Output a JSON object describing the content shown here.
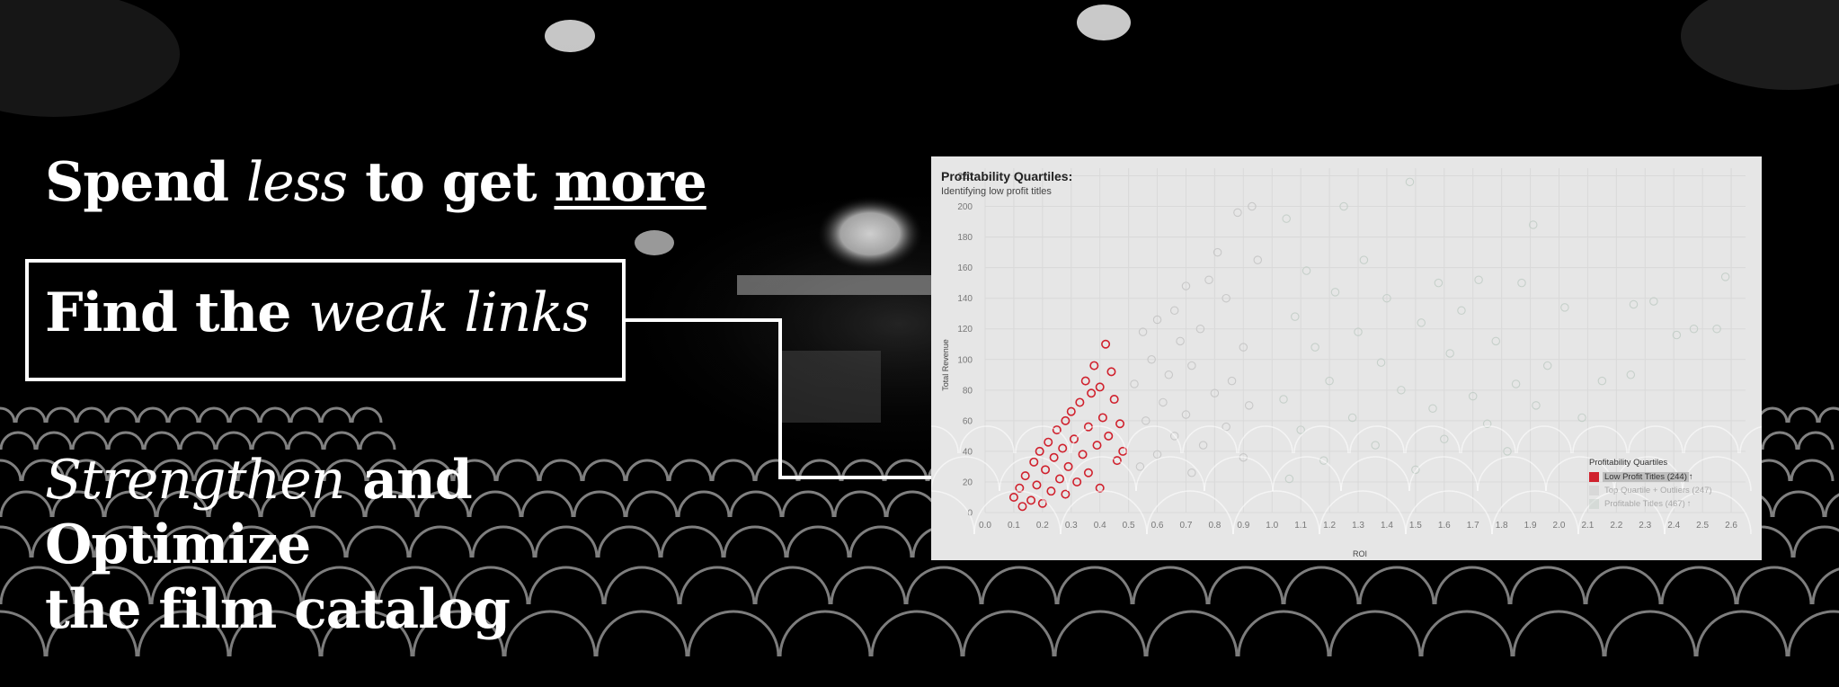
{
  "headline_1": {
    "pre": "Spend",
    "emph": "less",
    "mid": "to get",
    "strong": "more"
  },
  "headline_2": {
    "pre": "Find the",
    "emph": "weak links"
  },
  "headline_3": {
    "emph": "Strengthen",
    "mid": "and Optimize",
    "line2": "the film catalog"
  },
  "colors": {
    "low_profit": "#d0212d",
    "other": "#c4c4c4",
    "profitable": "#c2cdc6"
  },
  "chart_data": {
    "type": "scatter",
    "title": "Profitability Quartiles:",
    "subtitle": "Identifying low profit titles",
    "xlabel": "ROI",
    "ylabel": "Total Revenue",
    "xlim": [
      0.0,
      2.65
    ],
    "ylim": [
      0,
      225
    ],
    "x_ticks": [
      "0.0",
      "0.1",
      "0.2",
      "0.3",
      "0.4",
      "0.5",
      "0.6",
      "0.7",
      "0.8",
      "0.9",
      "1.0",
      "1.1",
      "1.2",
      "1.3",
      "1.4",
      "1.5",
      "1.6",
      "1.7",
      "1.8",
      "1.9",
      "2.0",
      "2.1",
      "2.2",
      "2.3",
      "2.4",
      "2.5",
      "2.6"
    ],
    "y_ticks": [
      "0",
      "20",
      "40",
      "60",
      "80",
      "100",
      "120",
      "140",
      "160",
      "180",
      "200",
      "220"
    ],
    "grid": true,
    "legend_position": "bottom-right",
    "legend_title": "Profitability Quartiles",
    "series": [
      {
        "name": "Low Profit Titles (244)",
        "color": "#d0212d",
        "marker": "open-circle",
        "count": 244,
        "points": [
          [
            0.42,
            110
          ],
          [
            0.38,
            96
          ],
          [
            0.44,
            92
          ],
          [
            0.35,
            86
          ],
          [
            0.4,
            82
          ],
          [
            0.37,
            78
          ],
          [
            0.45,
            74
          ],
          [
            0.33,
            72
          ],
          [
            0.3,
            66
          ],
          [
            0.41,
            62
          ],
          [
            0.47,
            58
          ],
          [
            0.28,
            60
          ],
          [
            0.36,
            56
          ],
          [
            0.25,
            54
          ],
          [
            0.43,
            50
          ],
          [
            0.31,
            48
          ],
          [
            0.22,
            46
          ],
          [
            0.39,
            44
          ],
          [
            0.27,
            42
          ],
          [
            0.19,
            40
          ],
          [
            0.34,
            38
          ],
          [
            0.24,
            36
          ],
          [
            0.46,
            34
          ],
          [
            0.17,
            33
          ],
          [
            0.29,
            30
          ],
          [
            0.21,
            28
          ],
          [
            0.36,
            26
          ],
          [
            0.14,
            24
          ],
          [
            0.26,
            22
          ],
          [
            0.32,
            20
          ],
          [
            0.18,
            18
          ],
          [
            0.12,
            16
          ],
          [
            0.23,
            14
          ],
          [
            0.4,
            16
          ],
          [
            0.1,
            10
          ],
          [
            0.16,
            8
          ],
          [
            0.2,
            6
          ],
          [
            0.13,
            4
          ],
          [
            0.28,
            12
          ],
          [
            0.48,
            40
          ]
        ]
      },
      {
        "name": "Top Quartile + Outliers (247)",
        "color": "#c4c4c4",
        "marker": "open-circle",
        "count": 247,
        "points": [
          [
            0.88,
            196
          ],
          [
            0.93,
            200
          ],
          [
            0.81,
            170
          ],
          [
            0.78,
            152
          ],
          [
            0.95,
            165
          ],
          [
            0.7,
            148
          ],
          [
            0.66,
            132
          ],
          [
            0.84,
            140
          ],
          [
            0.6,
            126
          ],
          [
            0.75,
            120
          ],
          [
            0.55,
            118
          ],
          [
            0.68,
            112
          ],
          [
            0.9,
            108
          ],
          [
            0.58,
            100
          ],
          [
            0.72,
            96
          ],
          [
            0.64,
            90
          ],
          [
            0.86,
            86
          ],
          [
            0.52,
            84
          ],
          [
            0.8,
            78
          ],
          [
            0.62,
            72
          ],
          [
            0.92,
            70
          ],
          [
            0.7,
            64
          ],
          [
            0.56,
            60
          ],
          [
            0.84,
            56
          ],
          [
            0.66,
            50
          ],
          [
            0.76,
            44
          ],
          [
            0.6,
            38
          ],
          [
            0.9,
            36
          ],
          [
            0.54,
            30
          ],
          [
            0.72,
            26
          ]
        ]
      },
      {
        "name": "Profitable Titles (467)",
        "color": "#c2cdc6",
        "marker": "open-circle",
        "count": 467,
        "points": [
          [
            1.48,
            216
          ],
          [
            1.25,
            200
          ],
          [
            1.05,
            192
          ],
          [
            1.91,
            188
          ],
          [
            1.32,
            165
          ],
          [
            1.12,
            158
          ],
          [
            1.58,
            150
          ],
          [
            1.72,
            152
          ],
          [
            1.87,
            150
          ],
          [
            1.22,
            144
          ],
          [
            1.4,
            140
          ],
          [
            2.26,
            136
          ],
          [
            2.33,
            138
          ],
          [
            1.66,
            132
          ],
          [
            2.02,
            134
          ],
          [
            1.08,
            128
          ],
          [
            1.52,
            124
          ],
          [
            2.47,
            120
          ],
          [
            2.55,
            120
          ],
          [
            1.3,
            118
          ],
          [
            1.78,
            112
          ],
          [
            2.41,
            116
          ],
          [
            1.15,
            108
          ],
          [
            1.62,
            104
          ],
          [
            1.96,
            96
          ],
          [
            1.38,
            98
          ],
          [
            2.25,
            90
          ],
          [
            1.2,
            86
          ],
          [
            1.85,
            84
          ],
          [
            2.15,
            86
          ],
          [
            1.45,
            80
          ],
          [
            1.7,
            76
          ],
          [
            1.04,
            74
          ],
          [
            1.56,
            68
          ],
          [
            1.92,
            70
          ],
          [
            1.28,
            62
          ],
          [
            1.75,
            58
          ],
          [
            1.1,
            54
          ],
          [
            1.6,
            48
          ],
          [
            1.36,
            44
          ],
          [
            1.82,
            40
          ],
          [
            1.18,
            34
          ],
          [
            1.5,
            28
          ],
          [
            1.06,
            22
          ],
          [
            2.58,
            154
          ],
          [
            2.08,
            62
          ]
        ]
      }
    ]
  }
}
